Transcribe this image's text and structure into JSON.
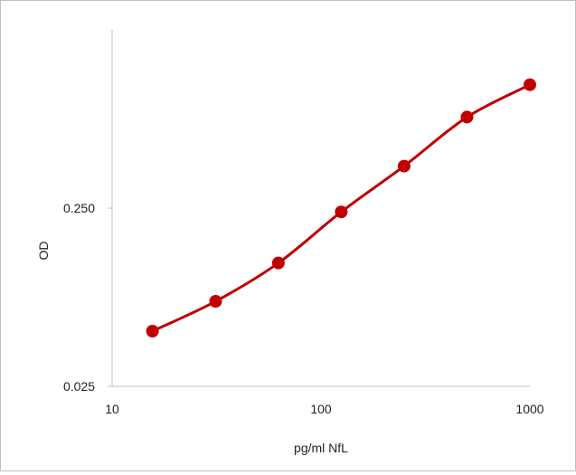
{
  "chart_data": {
    "type": "line",
    "title": "",
    "xlabel": "pg/ml NfL",
    "ylabel": "OD",
    "x_scale": "log",
    "y_scale": "log",
    "xlim": [
      10,
      1000
    ],
    "ylim": [
      0.025,
      2.5
    ],
    "x_ticks": [
      "10",
      "100",
      "1000"
    ],
    "y_ticks": [
      "0.025",
      "0.250"
    ],
    "grid": false,
    "legend": "none",
    "line_color": "#c00000",
    "marker_color": "#c00000",
    "series": [
      {
        "x": [
          15.6,
          31.3,
          62.5,
          125,
          250,
          500,
          1000
        ],
        "y": [
          0.051,
          0.075,
          0.123,
          0.238,
          0.43,
          0.81,
          1.23
        ]
      }
    ]
  }
}
